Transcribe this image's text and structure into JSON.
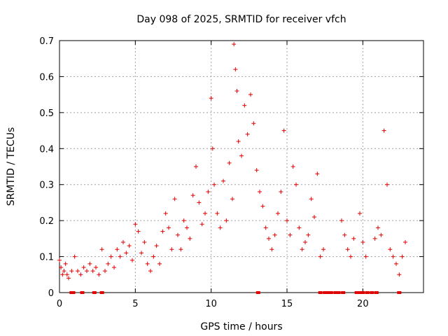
{
  "chart_data": {
    "type": "scatter",
    "title": "Day 098 of 2025, SRMTID for receiver vfch",
    "xlabel": "GPS time / hours",
    "ylabel": "SRMTID / TECUs",
    "xlim": [
      0,
      24
    ],
    "ylim": [
      0,
      0.7
    ],
    "x_ticks": [
      0,
      5,
      10,
      15,
      20
    ],
    "y_ticks": [
      0,
      0.1,
      0.2,
      0.3,
      0.4,
      0.5,
      0.6,
      0.7
    ],
    "x_tick_labels": [
      "0",
      "5",
      "10",
      "15",
      "20"
    ],
    "y_tick_labels": [
      "0",
      "0.1",
      "0.2",
      "0.3",
      "0.4",
      "0.5",
      "0.6",
      "0.7"
    ],
    "grid": true,
    "marker": "+",
    "color": "#e00000",
    "series": [
      {
        "name": "SRMTID",
        "x": [
          0.0,
          0.1,
          0.2,
          0.3,
          0.4,
          0.5,
          0.6,
          0.8,
          1.0,
          1.2,
          1.4,
          1.6,
          1.8,
          2.0,
          2.2,
          2.4,
          2.6,
          2.8,
          3.0,
          3.2,
          3.4,
          3.6,
          3.8,
          4.0,
          4.2,
          4.4,
          4.6,
          4.8,
          5.0,
          5.2,
          5.4,
          5.6,
          5.8,
          6.0,
          6.2,
          6.4,
          6.6,
          6.8,
          7.0,
          7.2,
          7.4,
          7.6,
          7.8,
          8.0,
          8.2,
          8.4,
          8.6,
          8.8,
          9.0,
          9.2,
          9.4,
          9.6,
          9.8,
          10.0,
          10.1,
          10.2,
          10.4,
          10.6,
          10.8,
          11.0,
          11.2,
          11.4,
          11.5,
          11.6,
          11.7,
          11.8,
          12.0,
          12.2,
          12.4,
          12.6,
          12.8,
          13.0,
          13.2,
          13.4,
          13.6,
          13.8,
          14.0,
          14.2,
          14.4,
          14.6,
          14.8,
          15.0,
          15.2,
          15.4,
          15.6,
          15.8,
          16.0,
          16.2,
          16.4,
          16.6,
          16.8,
          17.0,
          17.2,
          17.4,
          18.6,
          18.8,
          19.0,
          19.2,
          19.4,
          19.8,
          20.0,
          20.2,
          20.8,
          21.0,
          21.2,
          21.4,
          21.6,
          21.8,
          22.0,
          22.2,
          22.4,
          22.6,
          22.8
        ],
        "y": [
          0.09,
          0.07,
          0.05,
          0.06,
          0.08,
          0.05,
          0.04,
          0.06,
          0.1,
          0.06,
          0.05,
          0.07,
          0.06,
          0.08,
          0.06,
          0.07,
          0.05,
          0.12,
          0.06,
          0.08,
          0.1,
          0.07,
          0.12,
          0.1,
          0.14,
          0.11,
          0.13,
          0.09,
          0.19,
          0.17,
          0.11,
          0.14,
          0.08,
          0.06,
          0.1,
          0.13,
          0.08,
          0.17,
          0.22,
          0.18,
          0.12,
          0.26,
          0.16,
          0.12,
          0.2,
          0.18,
          0.15,
          0.27,
          0.35,
          0.25,
          0.19,
          0.22,
          0.28,
          0.54,
          0.4,
          0.3,
          0.22,
          0.18,
          0.31,
          0.2,
          0.36,
          0.26,
          0.69,
          0.62,
          0.56,
          0.42,
          0.38,
          0.52,
          0.44,
          0.55,
          0.47,
          0.34,
          0.28,
          0.24,
          0.18,
          0.15,
          0.12,
          0.16,
          0.22,
          0.28,
          0.45,
          0.2,
          0.16,
          0.35,
          0.3,
          0.18,
          0.12,
          0.14,
          0.16,
          0.26,
          0.21,
          0.33,
          0.1,
          0.12,
          0.2,
          0.16,
          0.12,
          0.1,
          0.15,
          0.22,
          0.14,
          0.1,
          0.15,
          0.18,
          0.16,
          0.45,
          0.3,
          0.12,
          0.1,
          0.08,
          0.05,
          0.1,
          0.14
        ],
        "zero_points_x": [
          0.8,
          0.9,
          1.5,
          2.3,
          2.8,
          13.1,
          17.2,
          17.5,
          17.7,
          17.9,
          18.2,
          18.4,
          18.7,
          19.6,
          19.8,
          20.0,
          20.3,
          20.6,
          20.9,
          22.4
        ]
      }
    ]
  }
}
